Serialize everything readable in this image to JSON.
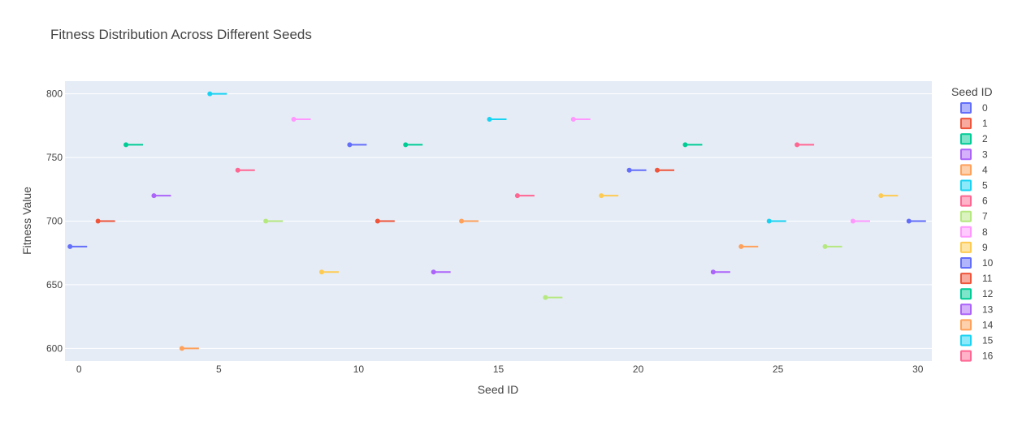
{
  "chart_data": {
    "type": "box",
    "title": "Fitness Distribution Across Different Seeds",
    "xlabel": "Seed ID",
    "ylabel": "Fitness Value",
    "xlim": [
      -0.5,
      30.5
    ],
    "ylim": [
      590,
      810
    ],
    "x_ticks": [
      0,
      5,
      10,
      15,
      20,
      25,
      30
    ],
    "y_ticks": [
      600,
      650,
      700,
      750,
      800
    ],
    "legend_title": "Seed ID",
    "legend_entries": [
      "0",
      "1",
      "2",
      "3",
      "4",
      "5",
      "6",
      "7",
      "8",
      "9",
      "10",
      "11",
      "12",
      "13",
      "14",
      "15",
      "16"
    ],
    "seeds": [
      0,
      1,
      2,
      3,
      4,
      5,
      6,
      7,
      8,
      9,
      10,
      11,
      12,
      13,
      14,
      15,
      16,
      17,
      18,
      19,
      20,
      21,
      22,
      23,
      24,
      25,
      26,
      27,
      28,
      29,
      30
    ],
    "values": [
      680,
      700,
      760,
      720,
      600,
      800,
      740,
      700,
      780,
      660,
      760,
      700,
      760,
      660,
      700,
      780,
      720,
      640,
      780,
      720,
      740,
      740,
      760,
      660,
      680,
      700,
      760,
      680,
      700,
      720,
      700
    ],
    "palette": [
      "#636efa",
      "#EF553B",
      "#00cc96",
      "#ab63fa",
      "#FFA15A",
      "#19d3f3",
      "#FF6692",
      "#B6E880",
      "#FF97FF",
      "#FECB52"
    ]
  }
}
